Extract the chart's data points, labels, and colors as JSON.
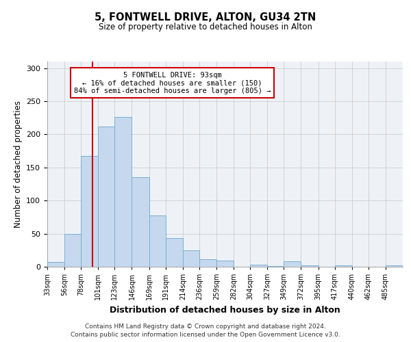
{
  "title": "5, FONTWELL DRIVE, ALTON, GU34 2TN",
  "subtitle": "Size of property relative to detached houses in Alton",
  "xlabel": "Distribution of detached houses by size in Alton",
  "ylabel": "Number of detached properties",
  "bin_labels": [
    "33sqm",
    "56sqm",
    "78sqm",
    "101sqm",
    "123sqm",
    "146sqm",
    "169sqm",
    "191sqm",
    "214sqm",
    "236sqm",
    "259sqm",
    "282sqm",
    "304sqm",
    "327sqm",
    "349sqm",
    "372sqm",
    "395sqm",
    "417sqm",
    "440sqm",
    "462sqm",
    "485sqm"
  ],
  "bar_values": [
    7,
    50,
    167,
    212,
    226,
    135,
    77,
    43,
    25,
    11,
    9,
    0,
    3,
    1,
    8,
    2,
    0,
    2,
    0,
    0,
    2
  ],
  "bin_edges": [
    33,
    56,
    78,
    101,
    123,
    146,
    169,
    191,
    214,
    236,
    259,
    282,
    304,
    327,
    349,
    372,
    395,
    417,
    440,
    462,
    485,
    508
  ],
  "bar_color": "#c5d8ed",
  "bar_edge_color": "#7bafd4",
  "vline_x": 93,
  "vline_color": "#cc0000",
  "annotation_text": "5 FONTWELL DRIVE: 93sqm\n← 16% of detached houses are smaller (150)\n84% of semi-detached houses are larger (805) →",
  "annotation_box_color": "#ffffff",
  "annotation_box_edge": "#cc0000",
  "ylim": [
    0,
    310
  ],
  "yticks": [
    0,
    50,
    100,
    150,
    200,
    250,
    300
  ],
  "footer_line1": "Contains HM Land Registry data © Crown copyright and database right 2024.",
  "footer_line2": "Contains public sector information licensed under the Open Government Licence v3.0.",
  "background_color": "#eef2f7"
}
